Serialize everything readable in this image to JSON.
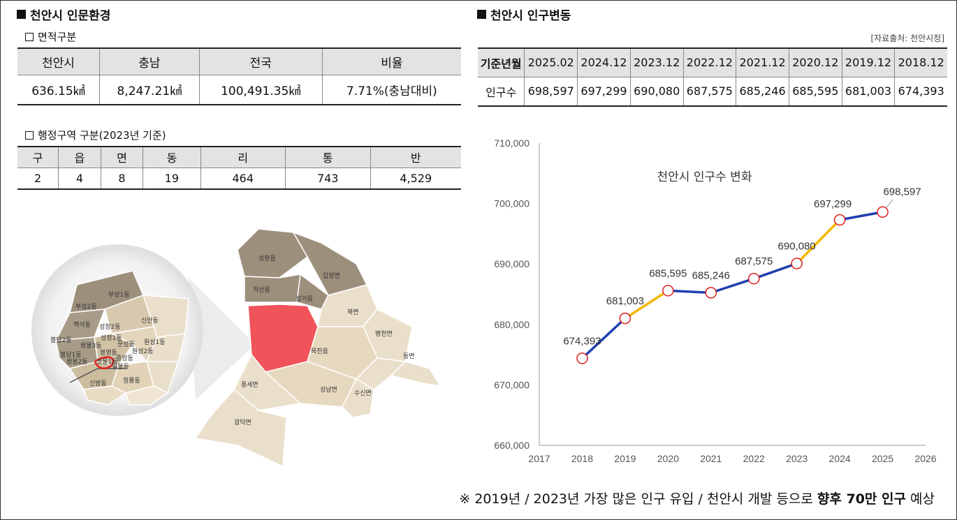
{
  "left": {
    "title": "천안시 인문환경",
    "area": {
      "subtitle": "면적구분",
      "headers": [
        "천안시",
        "충남",
        "전국",
        "비율"
      ],
      "values": [
        "636.15㎢",
        "8,247.21㎢",
        "100,491.35㎢",
        "7.71%(충남대비)"
      ]
    },
    "admin": {
      "subtitle": "행정구역 구분(2023년 기준)",
      "headers": [
        "구",
        "읍",
        "면",
        "동",
        "리",
        "통",
        "반"
      ],
      "values": [
        "2",
        "4",
        "8",
        "19",
        "464",
        "743",
        "4,529"
      ]
    },
    "map": {
      "outer_labels": [
        "성환읍",
        "입장면",
        "직산읍",
        "성거읍",
        "북면",
        "병천면",
        "목천읍",
        "동면",
        "풍세면",
        "성남면",
        "수신면",
        "광덕면"
      ],
      "inner_labels": [
        "부성1동",
        "부성2동",
        "신안동",
        "백석동",
        "성정2동",
        "불당2동",
        "성정1동",
        "원성1동",
        "쌍용3동",
        "문성동",
        "원성2동",
        "불당1동",
        "봉명동",
        "쌍용2동",
        "쌍용1동",
        "중앙동",
        "일봉동",
        "신방동",
        "청룡동"
      ]
    }
  },
  "right": {
    "title": "천안시 인구변동",
    "source": "[자료출처: 천안시청]",
    "pop_table": {
      "header_label": "기준년월",
      "row_label": "인구수",
      "dates": [
        "2025.02",
        "2024.12",
        "2023.12",
        "2022.12",
        "2021.12",
        "2020.12",
        "2019.12",
        "2018.12"
      ],
      "values": [
        "698,597",
        "697,299",
        "690,080",
        "687,575",
        "685,246",
        "685,595",
        "681,003",
        "674,393"
      ]
    }
  },
  "chart_data": {
    "type": "line",
    "title": "천안시 인구수 변화",
    "x": [
      2018,
      2019,
      2020,
      2021,
      2022,
      2023,
      2024,
      2025
    ],
    "values": [
      674393,
      681003,
      685595,
      685246,
      687575,
      690080,
      697299,
      698597
    ],
    "point_labels": [
      "674,393",
      "681,003",
      "685,595",
      "685,246",
      "687,575",
      "690,080",
      "697,299",
      "698,597"
    ],
    "xlim": [
      2017,
      2026
    ],
    "x_ticks": [
      "2017",
      "2018",
      "2019",
      "2020",
      "2021",
      "2022",
      "2023",
      "2024",
      "2025",
      "2026"
    ],
    "ylim": [
      660000,
      710000
    ],
    "y_ticks": [
      "660,000",
      "670,000",
      "680,000",
      "690,000",
      "700,000",
      "710,000"
    ],
    "segment_colors": [
      "#1f3fb0",
      "#f5b700",
      "#1f3fb0",
      "#1f3fb0",
      "#1f3fb0",
      "#f5b700",
      "#1f3fb0"
    ],
    "marker_color": "#e02020",
    "grid": false
  },
  "footnote": {
    "prefix": "※ 2019년 / 2023년 가장 많은 인구 유입 / 천안시 개발 등으로 ",
    "bold": "향후 70만 인구",
    "suffix": " 예상"
  }
}
